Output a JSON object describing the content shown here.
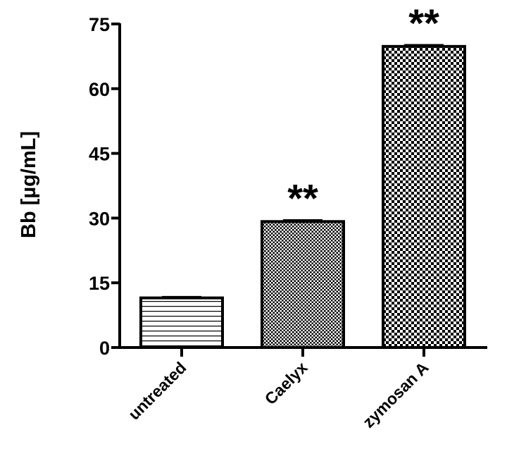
{
  "chart_data": {
    "type": "bar",
    "title": "",
    "xlabel": "",
    "ylabel": "Bb [µg/mL]",
    "ylim": [
      0,
      75
    ],
    "yticks": [
      0,
      15,
      30,
      45,
      60,
      75
    ],
    "ytick_labels": [
      "0",
      "15",
      "30",
      "45",
      "60",
      "75"
    ],
    "categories": [
      "untreated",
      "Caelyx",
      "zymosan A"
    ],
    "values": [
      11.5,
      29.2,
      69.8
    ],
    "errors": [
      0.2,
      0.3,
      0.3
    ],
    "annotations": [
      "",
      "**",
      "**"
    ],
    "patterns": [
      "horizontal-lines",
      "fine-checker",
      "coarse-checker"
    ],
    "grid": false,
    "legend": "none"
  }
}
